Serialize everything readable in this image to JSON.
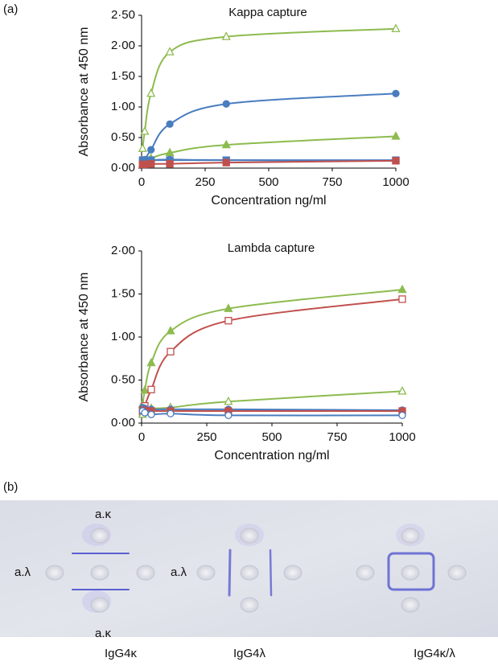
{
  "figure": {
    "a_label": "(a)",
    "b_label": "(b)"
  },
  "chart_data": [
    {
      "type": "line",
      "title": "Kappa capture",
      "xlabel": "Concentration ng/ml",
      "ylabel": "Absorbance at 450 nm",
      "x": [
        4.1,
        12.3,
        37,
        111,
        333,
        1000
      ],
      "xlim": [
        0,
        1000
      ],
      "xticks": [
        0,
        250,
        500,
        750,
        1000
      ],
      "ylim": [
        0,
        2.5
      ],
      "yticks": [
        {
          "value": 0,
          "label": "0·00"
        },
        {
          "value": 0.5,
          "label": "0·50"
        },
        {
          "value": 1,
          "label": "1·00"
        },
        {
          "value": 1.5,
          "label": "1·50"
        },
        {
          "value": 2,
          "label": "2·00"
        },
        {
          "value": 2.5,
          "label": "2·50"
        }
      ],
      "series": [
        {
          "color": "#8dbb4f",
          "marker": "triangle-open",
          "values": [
            0.32,
            0.6,
            1.22,
            1.9,
            2.15,
            2.28
          ]
        },
        {
          "color": "#4a7dbf",
          "marker": "circle",
          "values": [
            0.1,
            0.14,
            0.3,
            0.72,
            1.05,
            1.22
          ]
        },
        {
          "color": "#8dbb4f",
          "marker": "triangle",
          "values": [
            0.08,
            0.12,
            0.16,
            0.25,
            0.38,
            0.52
          ]
        },
        {
          "color": "#4a7dbf",
          "marker": "circle-open",
          "values": [
            0.12,
            0.13,
            0.13,
            0.14,
            0.13,
            0.12
          ]
        },
        {
          "color": "#4a7dbf",
          "marker": "square",
          "values": [
            0.13,
            0.13,
            0.13,
            0.13,
            0.13,
            0.13
          ]
        },
        {
          "color": "#c0504d",
          "marker": "square",
          "values": [
            0.06,
            0.06,
            0.07,
            0.07,
            0.09,
            0.12
          ]
        }
      ]
    },
    {
      "type": "line",
      "title": "Lambda capture",
      "xlabel": "Concentration ng/ml",
      "ylabel": "Absorbance at 450 nm",
      "x": [
        4.1,
        12.3,
        37,
        111,
        333,
        1000
      ],
      "xlim": [
        0,
        1000
      ],
      "xticks": [
        0,
        250,
        500,
        750,
        1000
      ],
      "ylim": [
        0,
        2
      ],
      "yticks": [
        {
          "value": 0,
          "label": "0·00"
        },
        {
          "value": 0.5,
          "label": "0·50"
        },
        {
          "value": 1,
          "label": "1·00"
        },
        {
          "value": 1.5,
          "label": "1·50"
        },
        {
          "value": 2,
          "label": "2·00"
        }
      ],
      "series": [
        {
          "color": "#8dbb4f",
          "marker": "triangle",
          "values": [
            0.22,
            0.38,
            0.7,
            1.07,
            1.33,
            1.55
          ]
        },
        {
          "color": "#c0504d",
          "marker": "square-open",
          "values": [
            0.12,
            0.2,
            0.39,
            0.83,
            1.19,
            1.44
          ]
        },
        {
          "color": "#8dbb4f",
          "marker": "triangle-open",
          "values": [
            0.1,
            0.15,
            0.17,
            0.18,
            0.25,
            0.37
          ]
        },
        {
          "color": "#4a7dbf",
          "marker": "circle",
          "values": [
            0.18,
            0.17,
            0.16,
            0.16,
            0.16,
            0.15
          ]
        },
        {
          "color": "#c0504d",
          "marker": "square",
          "values": [
            0.15,
            0.14,
            0.14,
            0.14,
            0.14,
            0.14
          ]
        },
        {
          "color": "#4a7dbf",
          "marker": "circle-open",
          "values": [
            0.14,
            0.12,
            0.1,
            0.11,
            0.09,
            0.09
          ]
        }
      ]
    }
  ],
  "gel": {
    "well_labels": [
      "a.κ",
      "a.κ",
      "a.λ",
      "a.λ"
    ],
    "sample_labels": [
      "IgG4κ",
      "IgG4λ",
      "IgG4κ/λ"
    ]
  }
}
